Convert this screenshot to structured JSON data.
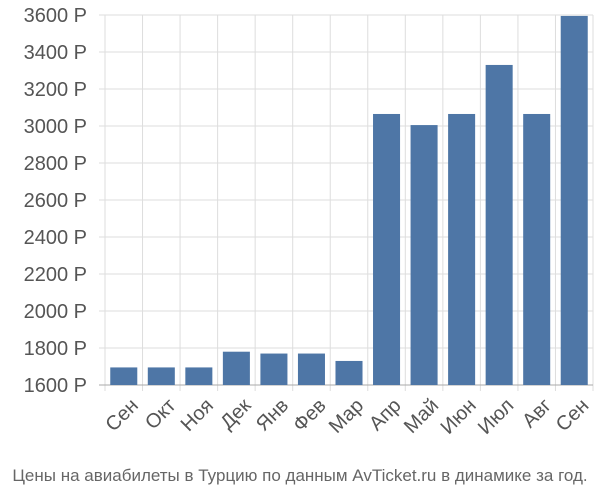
{
  "chart_data": {
    "type": "bar",
    "title": "",
    "xlabel": "",
    "ylabel": "",
    "caption": "Цены на авиабилеты в Турцию по данным AvTicket.ru в динамике за год.",
    "categories": [
      "Сен",
      "Окт",
      "Ноя",
      "Дек",
      "Янв",
      "Фев",
      "Мар",
      "Апр",
      "Май",
      "Июн",
      "Июл",
      "Авг",
      "Сен"
    ],
    "values": [
      1695,
      1695,
      1695,
      1780,
      1770,
      1770,
      1730,
      3065,
      3005,
      3065,
      3330,
      3065,
      3595
    ],
    "ylim": [
      1600,
      3600
    ],
    "yticks": [
      1600,
      1800,
      2000,
      2200,
      2400,
      2600,
      2800,
      3000,
      3200,
      3400,
      3600
    ],
    "ytick_labels": [
      "1600 Р",
      "1800 Р",
      "2000 Р",
      "2200 Р",
      "2400 Р",
      "2600 Р",
      "2800 Р",
      "3000 Р",
      "3200 Р",
      "3400 Р",
      "3600 Р"
    ],
    "grid": true,
    "bar_color": "#4e76a6",
    "grid_color": "#dddddd",
    "axis_color": "#aaaaaa"
  }
}
